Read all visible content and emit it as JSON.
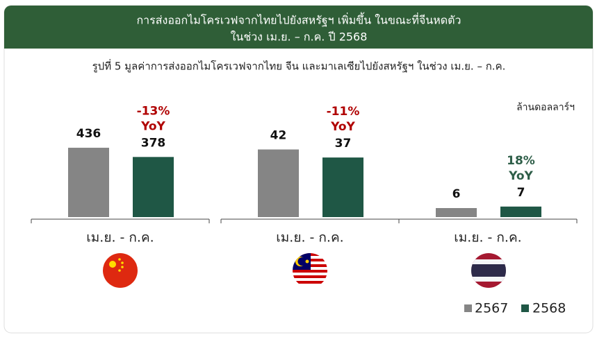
{
  "header": {
    "title": "การส่งออกไมโครเวฟจากไทยไปยังสหรัฐฯ เพิ่มขึ้น ในขณะที่จีนหดตัว",
    "subtitle": "ในช่วง เม.ย. – ก.ค. ปี 2568"
  },
  "figure_caption": "รูปที่ 5 มูลค่าการส่งออกไมโครเวฟจากไทย จีน และมาเลเซียไปยังสหรัฐฯ ในช่วง เม.ย. – ก.ค.",
  "unit_label": "ล้านดอลลาร์ฯ",
  "chart_data": [
    {
      "type": "bar",
      "categories": [
        "เม.ย. - ก.ค."
      ],
      "ylim": [
        0,
        567
      ],
      "series": [
        {
          "name": "2567",
          "color": "#858585",
          "values": [
            436
          ]
        },
        {
          "name": "2568",
          "color": "#1f5745",
          "values": [
            378
          ]
        }
      ],
      "yoy": {
        "value": -13,
        "label": "-13%"
      },
      "yoy_text": "YoY",
      "yoy_color": "#b00000"
    },
    {
      "type": "bar",
      "categories": [
        "เม.ย. - ก.ค."
      ],
      "ylim": [
        0,
        56
      ],
      "series": [
        {
          "name": "2567",
          "color": "#858585",
          "values": [
            42
          ]
        },
        {
          "name": "2568",
          "color": "#1f5745",
          "values": [
            37
          ]
        }
      ],
      "yoy": {
        "value": -11,
        "label": "-11%"
      },
      "yoy_text": "YoY",
      "yoy_color": "#b00000"
    },
    {
      "type": "bar",
      "categories": [
        "เม.ย. - ก.ค."
      ],
      "ylim": [
        0,
        60
      ],
      "series": [
        {
          "name": "2567",
          "color": "#858585",
          "values": [
            6
          ]
        },
        {
          "name": "2568",
          "color": "#1f5745",
          "values": [
            7
          ]
        }
      ],
      "yoy": {
        "value": 18,
        "label": "18%"
      },
      "yoy_text": "YoY",
      "yoy_color": "#2e5e48"
    }
  ]
}
